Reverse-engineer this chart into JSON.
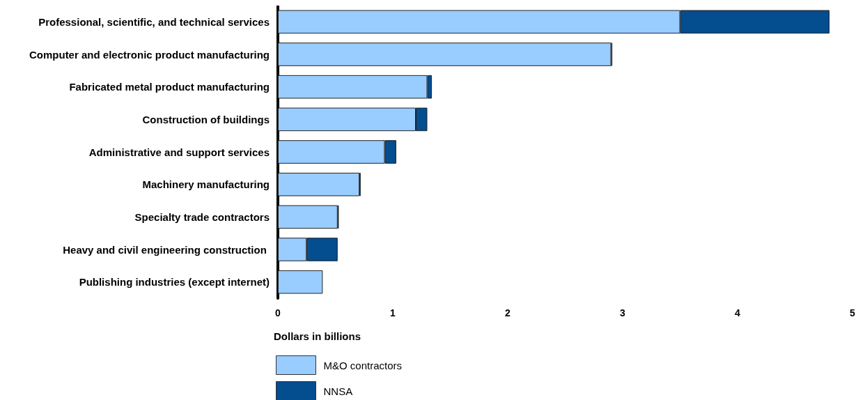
{
  "chart_data": {
    "type": "bar",
    "orientation": "horizontal",
    "stacked": true,
    "categories": [
      "Professional, scientific, and technical services",
      "Computer and electronic product manufacturing",
      "Fabricated metal product manufacturing",
      "Construction of buildings",
      "Administrative and support services",
      "Machinery manufacturing",
      "Specialty trade contractors",
      "Heavy and civil engineering construction ",
      "Publishing industries (except internet)"
    ],
    "series": [
      {
        "name": "M&O contractors",
        "color": "#99ccff",
        "values": [
          3.5,
          2.9,
          1.3,
          1.2,
          0.93,
          0.71,
          0.52,
          0.25,
          0.39
        ]
      },
      {
        "name": "NNSA",
        "color": "#044d8f",
        "values": [
          1.3,
          0.01,
          0.04,
          0.1,
          0.1,
          0.01,
          0.01,
          0.27,
          null
        ]
      }
    ],
    "xlabel": "Dollars in billions",
    "xlim": [
      0,
      5
    ],
    "xticks": [
      0,
      1,
      2,
      3,
      4,
      5
    ],
    "grid": false,
    "legend": "bottom left"
  }
}
